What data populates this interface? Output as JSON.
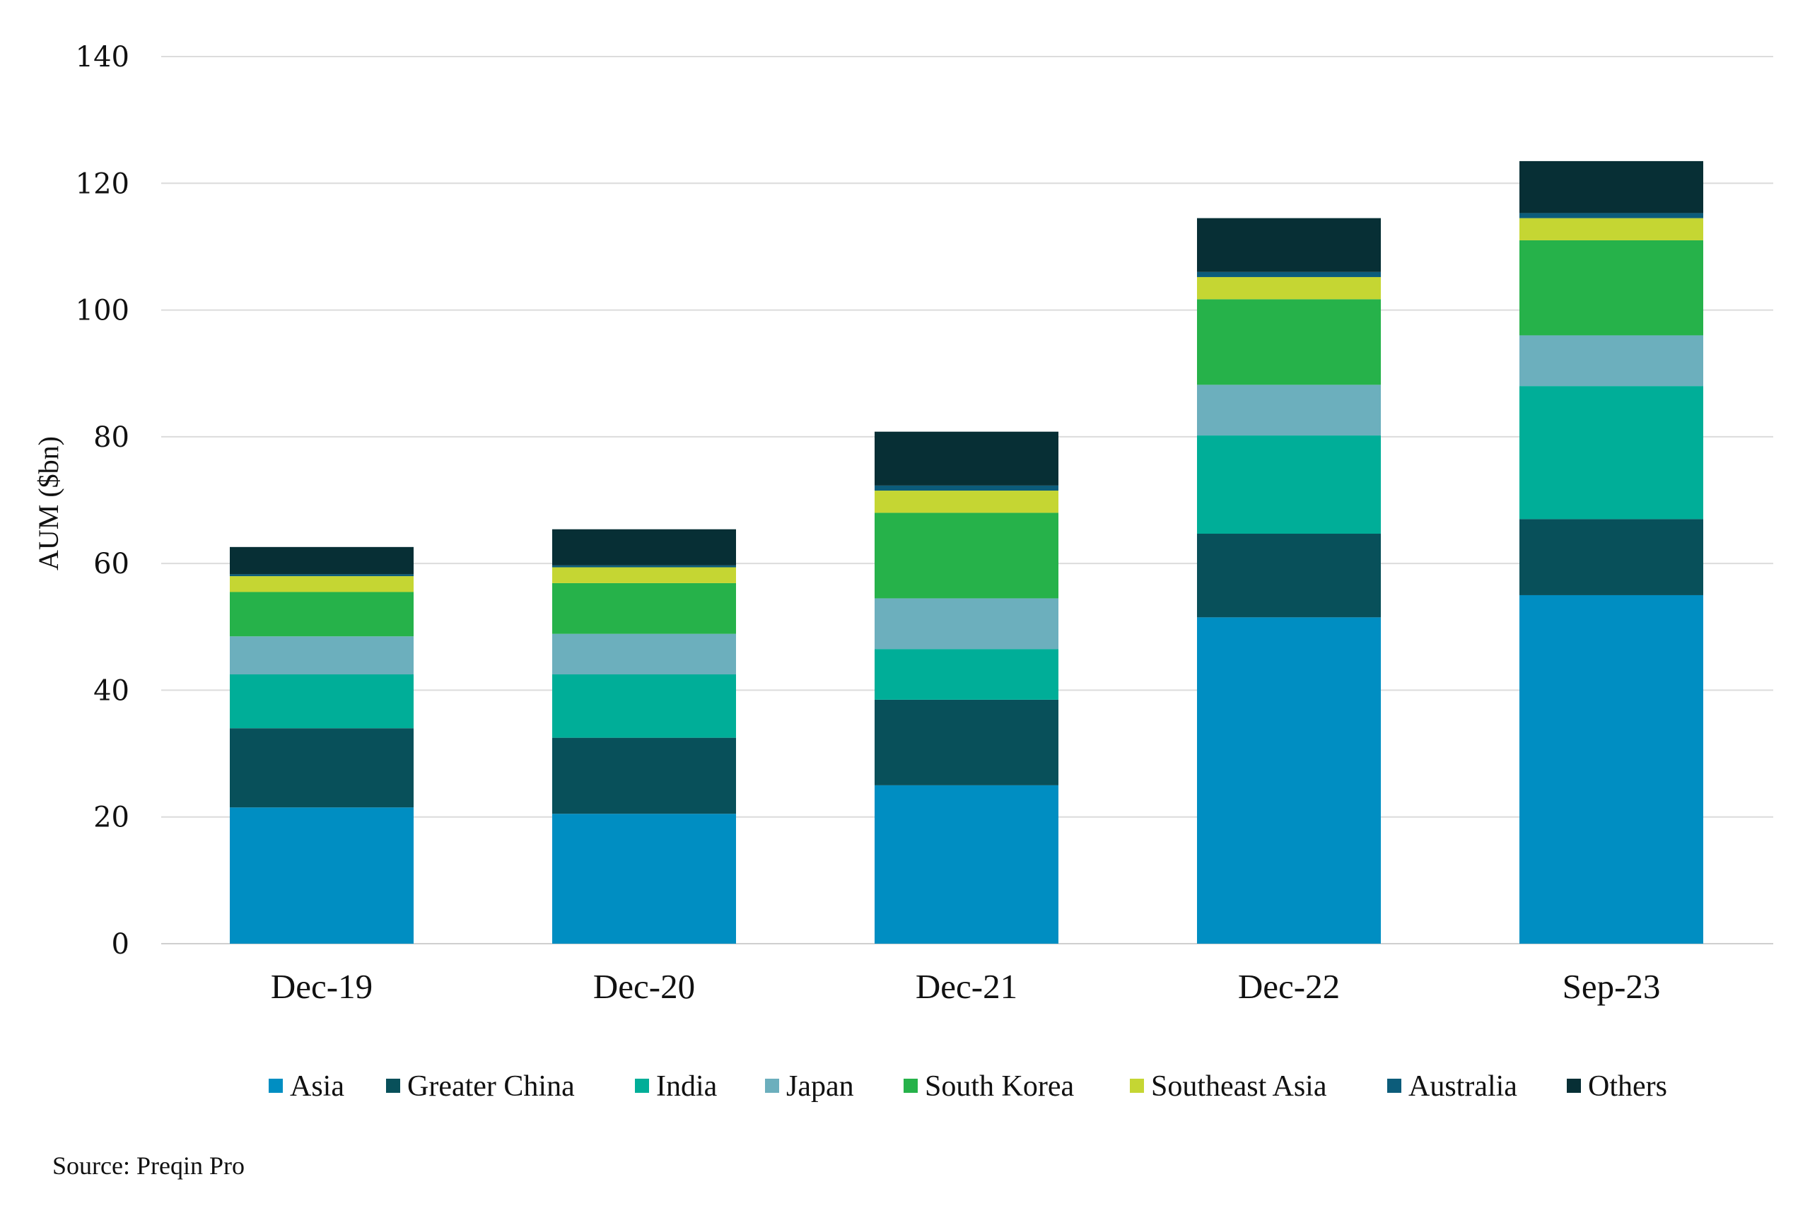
{
  "chart_data": {
    "type": "bar",
    "stacked": true,
    "categories": [
      "Dec-19",
      "Dec-20",
      "Dec-21",
      "Dec-22",
      "Sep-23"
    ],
    "series": [
      {
        "name": "Asia",
        "color": "#008EC2",
        "values": [
          21.5,
          20.5,
          25.0,
          51.5,
          55.0
        ]
      },
      {
        "name": "Greater China",
        "color": "#08505A",
        "values": [
          12.5,
          12.0,
          13.5,
          13.2,
          12.0
        ]
      },
      {
        "name": "India",
        "color": "#00AE98",
        "values": [
          8.5,
          10.0,
          8.0,
          15.5,
          21.0
        ]
      },
      {
        "name": "Japan",
        "color": "#6CAFBD",
        "values": [
          6.0,
          6.4,
          8.0,
          8.0,
          8.0
        ]
      },
      {
        "name": "South Korea",
        "color": "#26B24A",
        "values": [
          7.0,
          8.0,
          13.5,
          13.5,
          15.0
        ]
      },
      {
        "name": "Southeast Asia",
        "color": "#C5D633",
        "values": [
          2.5,
          2.5,
          3.5,
          3.5,
          3.5
        ]
      },
      {
        "name": "Australia",
        "color": "#0C5C7A",
        "values": [
          0.3,
          0.3,
          0.8,
          0.8,
          0.8
        ]
      },
      {
        "name": "Others",
        "color": "#072F35",
        "values": [
          4.3,
          5.7,
          8.5,
          8.5,
          8.2
        ]
      }
    ],
    "yticks": [
      0,
      20,
      40,
      60,
      80,
      100,
      120,
      140
    ],
    "ylim": [
      0,
      140
    ],
    "ylabel": "AUM ($bn)",
    "xlabel": "",
    "title": "",
    "grid": true,
    "legend_position": "bottom"
  },
  "source": "Source: Preqin Pro"
}
